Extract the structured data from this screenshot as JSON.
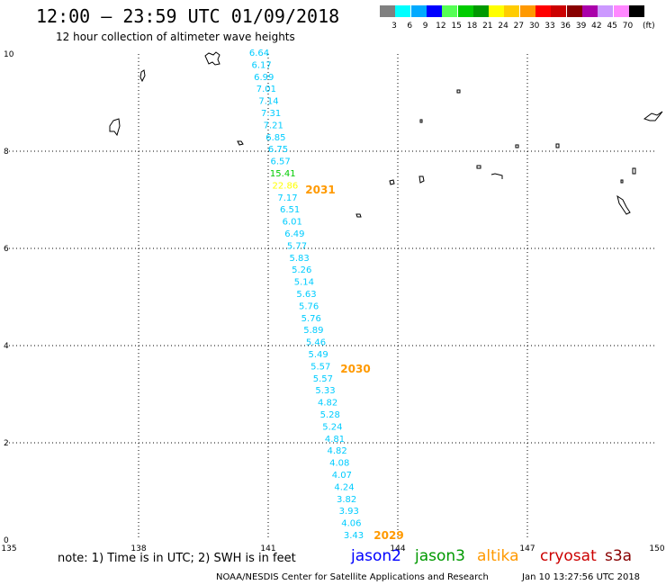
{
  "header": {
    "title": "12:00 – 23:59 UTC 01/09/2018",
    "subtitle": "12 hour collection of altimeter wave heights"
  },
  "legend": {
    "unit": "(ft)",
    "bins": [
      {
        "label": "3",
        "color": "#808080"
      },
      {
        "label": "6",
        "color": "#00ffff"
      },
      {
        "label": "9",
        "color": "#00aaff"
      },
      {
        "label": "12",
        "color": "#0000ff"
      },
      {
        "label": "15",
        "color": "#55ff55"
      },
      {
        "label": "18",
        "color": "#00cc00"
      },
      {
        "label": "21",
        "color": "#009900"
      },
      {
        "label": "24",
        "color": "#ffff00"
      },
      {
        "label": "27",
        "color": "#ffcc00"
      },
      {
        "label": "30",
        "color": "#ff9900"
      },
      {
        "label": "33",
        "color": "#ff0000"
      },
      {
        "label": "36",
        "color": "#cc0000"
      },
      {
        "label": "39",
        "color": "#880000"
      },
      {
        "label": "42",
        "color": "#aa00aa"
      },
      {
        "label": "45",
        "color": "#cc99ff"
      },
      {
        "label": "70",
        "color": "#ff88ff"
      },
      {
        "label": "",
        "color": "#000000"
      }
    ]
  },
  "axes": {
    "lat_ticks": [
      "0",
      "2",
      "4",
      "6",
      "8",
      "10"
    ],
    "lon_ticks": [
      "135",
      "138",
      "141",
      "144",
      "147",
      "150"
    ],
    "lat_range": [
      0,
      10
    ],
    "lon_range": [
      135,
      150
    ]
  },
  "track": {
    "satellite": "jason2",
    "color": "#00ccff",
    "points": [
      {
        "value": "6.64"
      },
      {
        "value": "6.17"
      },
      {
        "value": "6.99"
      },
      {
        "value": "7.01"
      },
      {
        "value": "7.14"
      },
      {
        "value": "7.31"
      },
      {
        "value": "7.21"
      },
      {
        "value": "6.85"
      },
      {
        "value": "6.75"
      },
      {
        "value": "6.57"
      },
      {
        "value": "15.41",
        "color": "#00cc00"
      },
      {
        "value": "22.86",
        "color": "#ffff00"
      },
      {
        "value": "7.17"
      },
      {
        "value": "6.51"
      },
      {
        "value": "6.01"
      },
      {
        "value": "6.49"
      },
      {
        "value": "5.77"
      },
      {
        "value": "5.83"
      },
      {
        "value": "5.26"
      },
      {
        "value": "5.14"
      },
      {
        "value": "5.63"
      },
      {
        "value": "5.76"
      },
      {
        "value": "5.76"
      },
      {
        "value": "5.89"
      },
      {
        "value": "5.46"
      },
      {
        "value": "5.49"
      },
      {
        "value": "5.57"
      },
      {
        "value": "5.57"
      },
      {
        "value": "5.33"
      },
      {
        "value": "4.82"
      },
      {
        "value": "5.28"
      },
      {
        "value": "5.24"
      },
      {
        "value": "4.81"
      },
      {
        "value": "4.82"
      },
      {
        "value": "4.08"
      },
      {
        "value": "4.07"
      },
      {
        "value": "4.24"
      },
      {
        "value": "3.82"
      },
      {
        "value": "3.93"
      },
      {
        "value": "4.06"
      },
      {
        "value": "3.43"
      }
    ],
    "time_labels": [
      {
        "text": "2031",
        "color": "#ff9900"
      },
      {
        "text": "2030",
        "color": "#ff9900"
      },
      {
        "text": "2029",
        "color": "#ff9900"
      }
    ]
  },
  "footer": {
    "note": "note: 1) Time is in UTC; 2) SWH is in feet",
    "satellites": [
      {
        "name": "jason2",
        "color": "#0000ff"
      },
      {
        "name": "jason3",
        "color": "#009900"
      },
      {
        "name": "altika",
        "color": "#ff9900"
      },
      {
        "name": "cryosat",
        "color": "#cc0000"
      },
      {
        "name": "s3a",
        "color": "#880000"
      }
    ],
    "credit": "NOAA/NESDIS Center for Satellite Applications and Research",
    "timestamp": "Jan 10 13:27:56 UTC 2018"
  }
}
